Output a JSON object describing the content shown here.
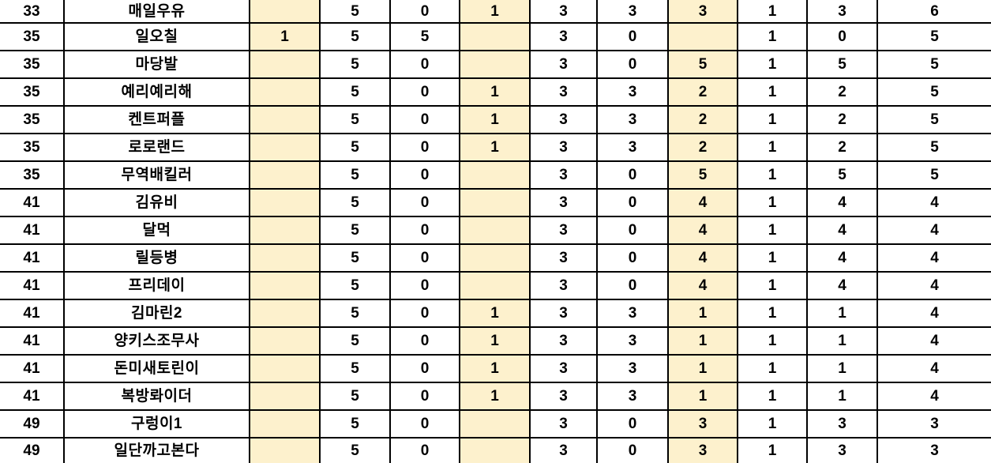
{
  "grid": {
    "highlight_color": "#FDF1CD",
    "border_color": "#000000",
    "highlight_column_indices": [
      2,
      5,
      8
    ],
    "column_roles": [
      "rank",
      "name",
      "v1",
      "v2",
      "v3",
      "v4",
      "v5",
      "v6",
      "v7",
      "v8",
      "v9",
      "v10"
    ],
    "rows": [
      {
        "cells": [
          "33",
          "매일우유",
          "",
          "5",
          "0",
          "1",
          "3",
          "3",
          "3",
          "1",
          "3",
          "6"
        ]
      },
      {
        "cells": [
          "35",
          "일오칠",
          "1",
          "5",
          "5",
          "",
          "3",
          "0",
          "",
          "1",
          "0",
          "5"
        ]
      },
      {
        "cells": [
          "35",
          "마당발",
          "",
          "5",
          "0",
          "",
          "3",
          "0",
          "5",
          "1",
          "5",
          "5"
        ]
      },
      {
        "cells": [
          "35",
          "예리예리해",
          "",
          "5",
          "0",
          "1",
          "3",
          "3",
          "2",
          "1",
          "2",
          "5"
        ]
      },
      {
        "cells": [
          "35",
          "켄트퍼플",
          "",
          "5",
          "0",
          "1",
          "3",
          "3",
          "2",
          "1",
          "2",
          "5"
        ]
      },
      {
        "cells": [
          "35",
          "로로랜드",
          "",
          "5",
          "0",
          "1",
          "3",
          "3",
          "2",
          "1",
          "2",
          "5"
        ]
      },
      {
        "cells": [
          "35",
          "무역배킬러",
          "",
          "5",
          "0",
          "",
          "3",
          "0",
          "5",
          "1",
          "5",
          "5"
        ]
      },
      {
        "cells": [
          "41",
          "김유비",
          "",
          "5",
          "0",
          "",
          "3",
          "0",
          "4",
          "1",
          "4",
          "4"
        ]
      },
      {
        "cells": [
          "41",
          "달먹",
          "",
          "5",
          "0",
          "",
          "3",
          "0",
          "4",
          "1",
          "4",
          "4"
        ]
      },
      {
        "cells": [
          "41",
          "릴등병",
          "",
          "5",
          "0",
          "",
          "3",
          "0",
          "4",
          "1",
          "4",
          "4"
        ]
      },
      {
        "cells": [
          "41",
          "프리데이",
          "",
          "5",
          "0",
          "",
          "3",
          "0",
          "4",
          "1",
          "4",
          "4"
        ]
      },
      {
        "cells": [
          "41",
          "김마린2",
          "",
          "5",
          "0",
          "1",
          "3",
          "3",
          "1",
          "1",
          "1",
          "4"
        ]
      },
      {
        "cells": [
          "41",
          "양키스조무사",
          "",
          "5",
          "0",
          "1",
          "3",
          "3",
          "1",
          "1",
          "1",
          "4"
        ]
      },
      {
        "cells": [
          "41",
          "돈미새토린이",
          "",
          "5",
          "0",
          "1",
          "3",
          "3",
          "1",
          "1",
          "1",
          "4"
        ]
      },
      {
        "cells": [
          "41",
          "복방롸이더",
          "",
          "5",
          "0",
          "1",
          "3",
          "3",
          "1",
          "1",
          "1",
          "4"
        ]
      },
      {
        "cells": [
          "49",
          "구렁이1",
          "",
          "5",
          "0",
          "",
          "3",
          "0",
          "3",
          "1",
          "3",
          "3"
        ]
      },
      {
        "cells": [
          "49",
          "일단까고본다",
          "",
          "5",
          "0",
          "",
          "3",
          "0",
          "3",
          "1",
          "3",
          "3"
        ]
      }
    ]
  }
}
